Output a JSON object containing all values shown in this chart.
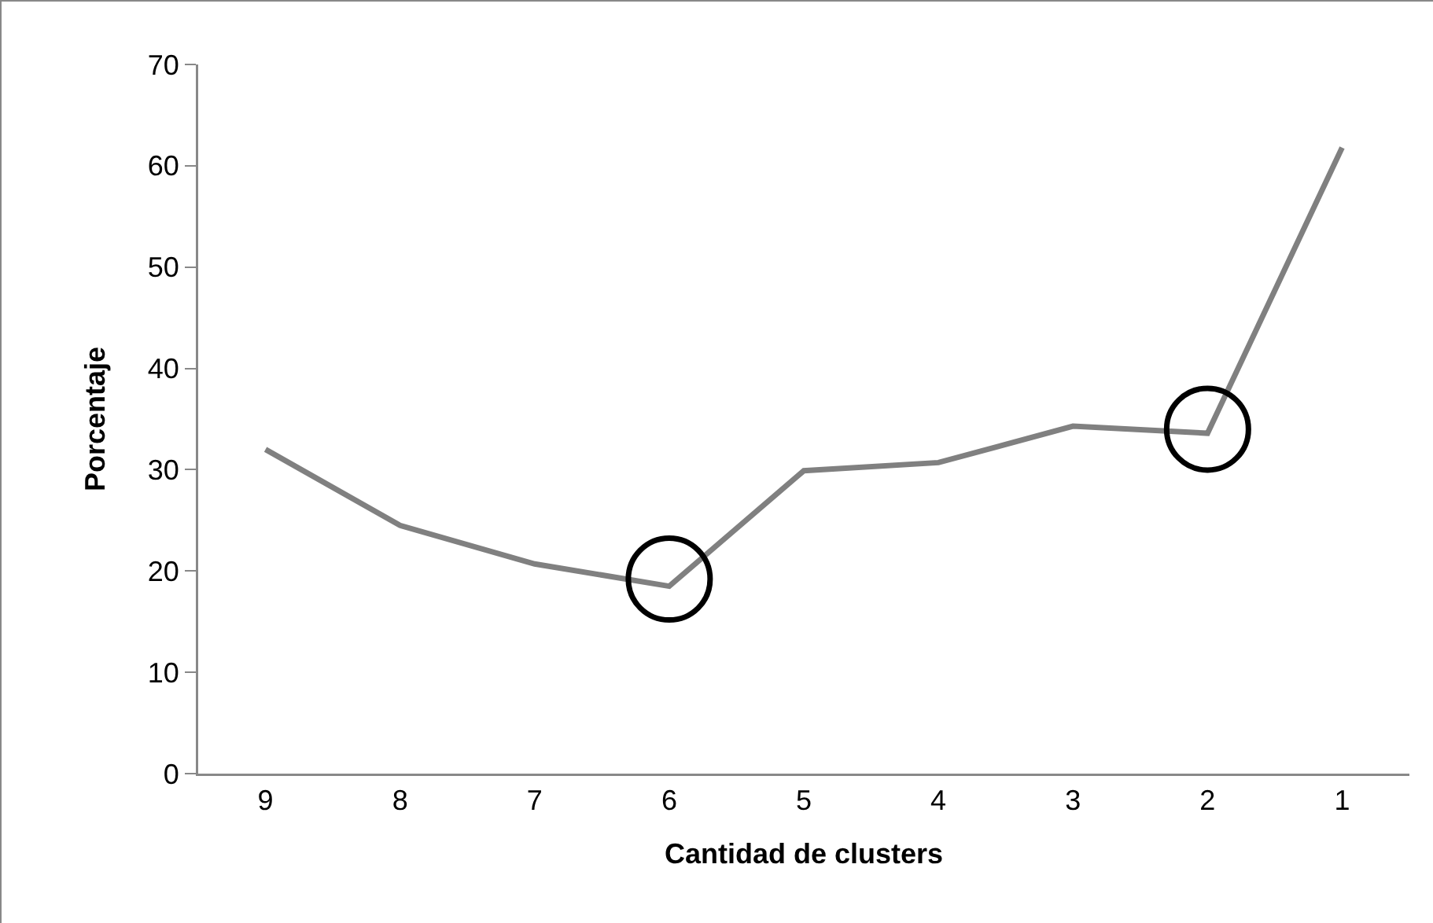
{
  "chart_data": {
    "type": "line",
    "xlabel": "Cantidad de clusters",
    "ylabel": "Porcentaje",
    "categories": [
      "9",
      "8",
      "7",
      "6",
      "5",
      "4",
      "3",
      "2",
      "1"
    ],
    "series": [
      {
        "color": "#808080",
        "values": [
          32.0,
          24.5,
          20.7,
          18.5,
          29.9,
          30.7,
          34.3,
          33.6,
          61.8
        ]
      },
      {
        "type": "scatter",
        "color": "#000000",
        "x": [
          "6",
          "2"
        ],
        "values": [
          19.2,
          34.0
        ],
        "marker": "circle"
      }
    ],
    "ylim": [
      0,
      70
    ],
    "yticks": [
      0,
      10,
      20,
      30,
      40,
      50,
      60,
      70
    ],
    "grid": false,
    "marker": "none",
    "line_style": "solid"
  }
}
